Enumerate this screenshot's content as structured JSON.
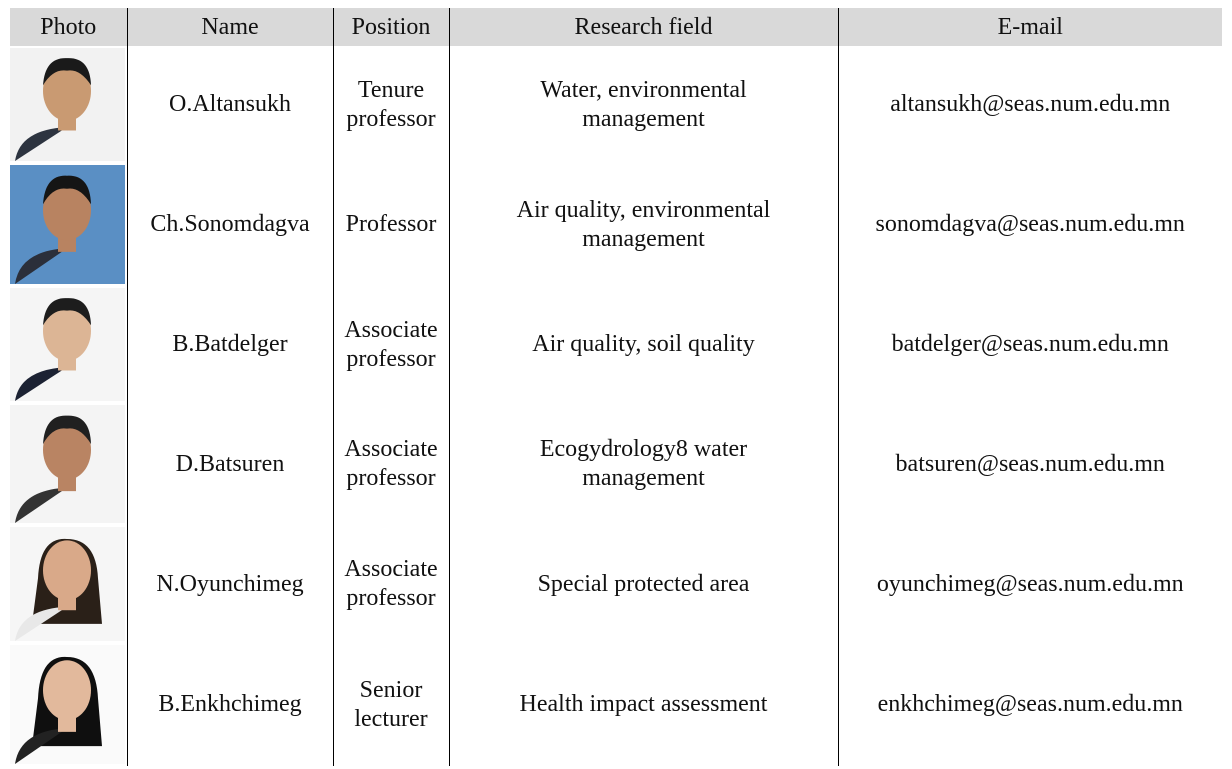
{
  "table": {
    "header": [
      "Photo",
      "Name",
      "Position",
      "Research field",
      "E-mail"
    ],
    "rows": [
      [
        "O.Altansukh",
        "Tenure professor",
        "Water, environmental management",
        "altansukh@seas.num.edu.mn"
      ],
      [
        "Ch.Sonomdagva",
        "Professor",
        "Air quality, environmental management",
        "sonomdagva@seas.num.edu.mn"
      ],
      [
        "B.Batdelger",
        "Associate professor",
        "Air quality, soil quality",
        "batdelger@seas.num.edu.mn"
      ],
      [
        "D.Batsuren",
        "Associate professor",
        "Ecogydrology8 water management",
        "batsuren@seas.num.edu.mn"
      ],
      [
        "N.Oyunchimeg",
        "Associate professor",
        "Special protected area",
        "oyunchimeg@seas.num.edu.mn"
      ],
      [
        "B.Enkhchimeg",
        "Senior lecturer",
        "Health impact assessment",
        "enkhchimeg@seas.num.edu.mn"
      ]
    ]
  }
}
